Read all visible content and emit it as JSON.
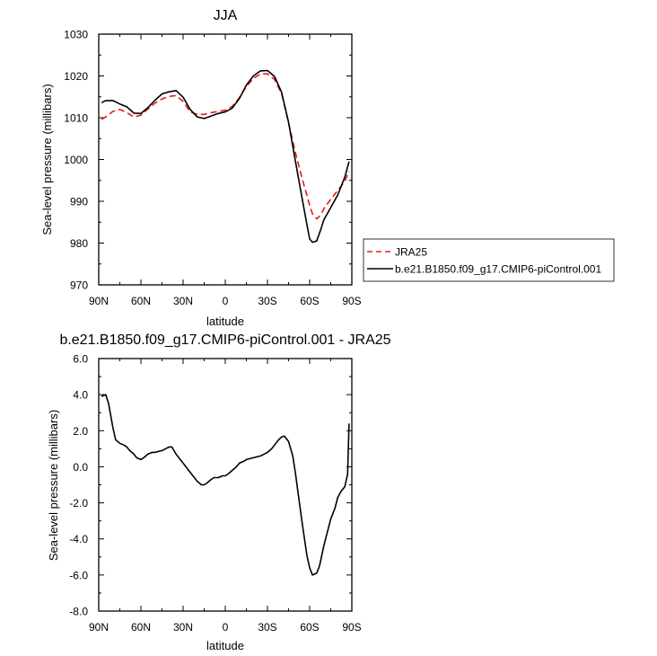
{
  "chart_data": [
    {
      "type": "line",
      "title": "JJA",
      "xlabel": "latitude",
      "ylabel": "Sea-level pressure (millibars)",
      "xlim": [
        90,
        -90
      ],
      "ylim": [
        970,
        1030
      ],
      "x_ticks": [
        90,
        60,
        30,
        0,
        -30,
        -60,
        -90
      ],
      "x_tick_labels": [
        "90N",
        "60N",
        "30N",
        "0",
        "30S",
        "60S",
        "90S"
      ],
      "y_ticks": [
        970,
        980,
        990,
        1000,
        1010,
        1020,
        1030
      ],
      "y_tick_labels": [
        "970",
        "980",
        "990",
        "1000",
        "1010",
        "1020",
        "1030"
      ],
      "legend_position": "right",
      "series": [
        {
          "name": "JRA25",
          "color": "#e8181a",
          "dash": true,
          "x": [
            88,
            85,
            80,
            75,
            70,
            65,
            60,
            55,
            50,
            45,
            40,
            35,
            30,
            25,
            20,
            15,
            10,
            5,
            0,
            -5,
            -10,
            -15,
            -20,
            -25,
            -30,
            -35,
            -40,
            -45,
            -50,
            -55,
            -58,
            -60,
            -62,
            -65,
            -68,
            -70,
            -75,
            -80,
            -85,
            -88
          ],
          "y": [
            1009.6,
            1010.2,
            1011.5,
            1012,
            1011.2,
            1010.2,
            1010.6,
            1012.1,
            1013.5,
            1014.5,
            1015.1,
            1015.3,
            1013.9,
            1011.4,
            1010.8,
            1010.8,
            1011.2,
            1011.5,
            1011.8,
            1012.7,
            1014.8,
            1017.5,
            1019.4,
            1020.5,
            1020.5,
            1019.2,
            1015.8,
            1008.8,
            1001.5,
            995,
            991.5,
            989,
            987,
            985.8,
            986.7,
            988.2,
            990.5,
            992.6,
            994.8,
            997.2
          ]
        },
        {
          "name": "b.e21.B1850.f09_g17.CMIP6-piControl.001",
          "color": "#000000",
          "dash": false,
          "x": [
            88,
            85,
            80,
            75,
            70,
            65,
            60,
            55,
            50,
            45,
            40,
            35,
            30,
            25,
            20,
            15,
            10,
            5,
            0,
            -5,
            -10,
            -15,
            -20,
            -25,
            -30,
            -35,
            -40,
            -45,
            -50,
            -55,
            -58,
            -60,
            -62,
            -65,
            -68,
            -70,
            -75,
            -80,
            -85,
            -88
          ],
          "y": [
            1013.6,
            1014.1,
            1014.1,
            1013.3,
            1012.6,
            1011.1,
            1011,
            1012.4,
            1014.2,
            1015.7,
            1016.2,
            1016.5,
            1014.9,
            1012,
            1010.2,
            1009.8,
            1010.4,
            1011,
            1011.4,
            1012.3,
            1014.6,
            1017.8,
            1020,
            1021.2,
            1021.3,
            1019.9,
            1016.1,
            1008.9,
            999.4,
            990,
            984.5,
            981,
            980.2,
            980.5,
            983.3,
            985.5,
            988.5,
            991.5,
            995.8,
            999.5
          ]
        }
      ]
    },
    {
      "type": "line",
      "title": "b.e21.B1850.f09_g17.CMIP6-piControl.001 - JRA25",
      "xlabel": "latitude",
      "ylabel": "Sea-level pressure (millibars)",
      "xlim": [
        90,
        -90
      ],
      "ylim": [
        -8,
        6
      ],
      "x_ticks": [
        90,
        60,
        30,
        0,
        -30,
        -60,
        -90
      ],
      "x_tick_labels": [
        "90N",
        "60N",
        "30N",
        "0",
        "30S",
        "60S",
        "90S"
      ],
      "y_ticks": [
        -8,
        -6,
        -4,
        -2,
        0,
        2,
        4,
        6
      ],
      "y_tick_labels": [
        "-8.0",
        "-6.0",
        "-4.0",
        "-2.0",
        "0.0",
        "2.0",
        "4.0",
        "6.0"
      ],
      "series": [
        {
          "color": "#000000",
          "dash": false,
          "x": [
            88,
            85,
            83,
            80,
            78,
            75,
            72,
            70,
            68,
            65,
            63,
            60,
            58,
            55,
            52,
            50,
            45,
            40,
            38,
            35,
            32,
            30,
            25,
            20,
            17,
            15,
            13,
            10,
            8,
            5,
            2,
            0,
            -2,
            -5,
            -8,
            -10,
            -13,
            -15,
            -20,
            -25,
            -30,
            -33,
            -35,
            -38,
            -40,
            -42,
            -45,
            -48,
            -50,
            -52,
            -55,
            -58,
            -60,
            -62,
            -65,
            -67,
            -70,
            -72,
            -75,
            -78,
            -80,
            -82,
            -85,
            -87,
            -88
          ],
          "y": [
            3.9,
            4,
            3.5,
            2.2,
            1.5,
            1.3,
            1.2,
            1.1,
            0.9,
            0.7,
            0.5,
            0.4,
            0.5,
            0.7,
            0.8,
            0.8,
            0.9,
            1.1,
            1.1,
            0.7,
            0.4,
            0.2,
            -0.3,
            -0.8,
            -1,
            -1,
            -0.9,
            -0.7,
            -0.6,
            -0.6,
            -0.5,
            -0.5,
            -0.4,
            -0.2,
            0,
            0.2,
            0.3,
            0.4,
            0.5,
            0.6,
            0.8,
            1,
            1.2,
            1.5,
            1.65,
            1.7,
            1.4,
            0.6,
            -0.4,
            -1.6,
            -3.3,
            -4.9,
            -5.6,
            -6,
            -5.9,
            -5.5,
            -4.4,
            -3.8,
            -2.9,
            -2.3,
            -1.7,
            -1.4,
            -1.1,
            -0.4,
            2.4
          ]
        }
      ]
    }
  ]
}
